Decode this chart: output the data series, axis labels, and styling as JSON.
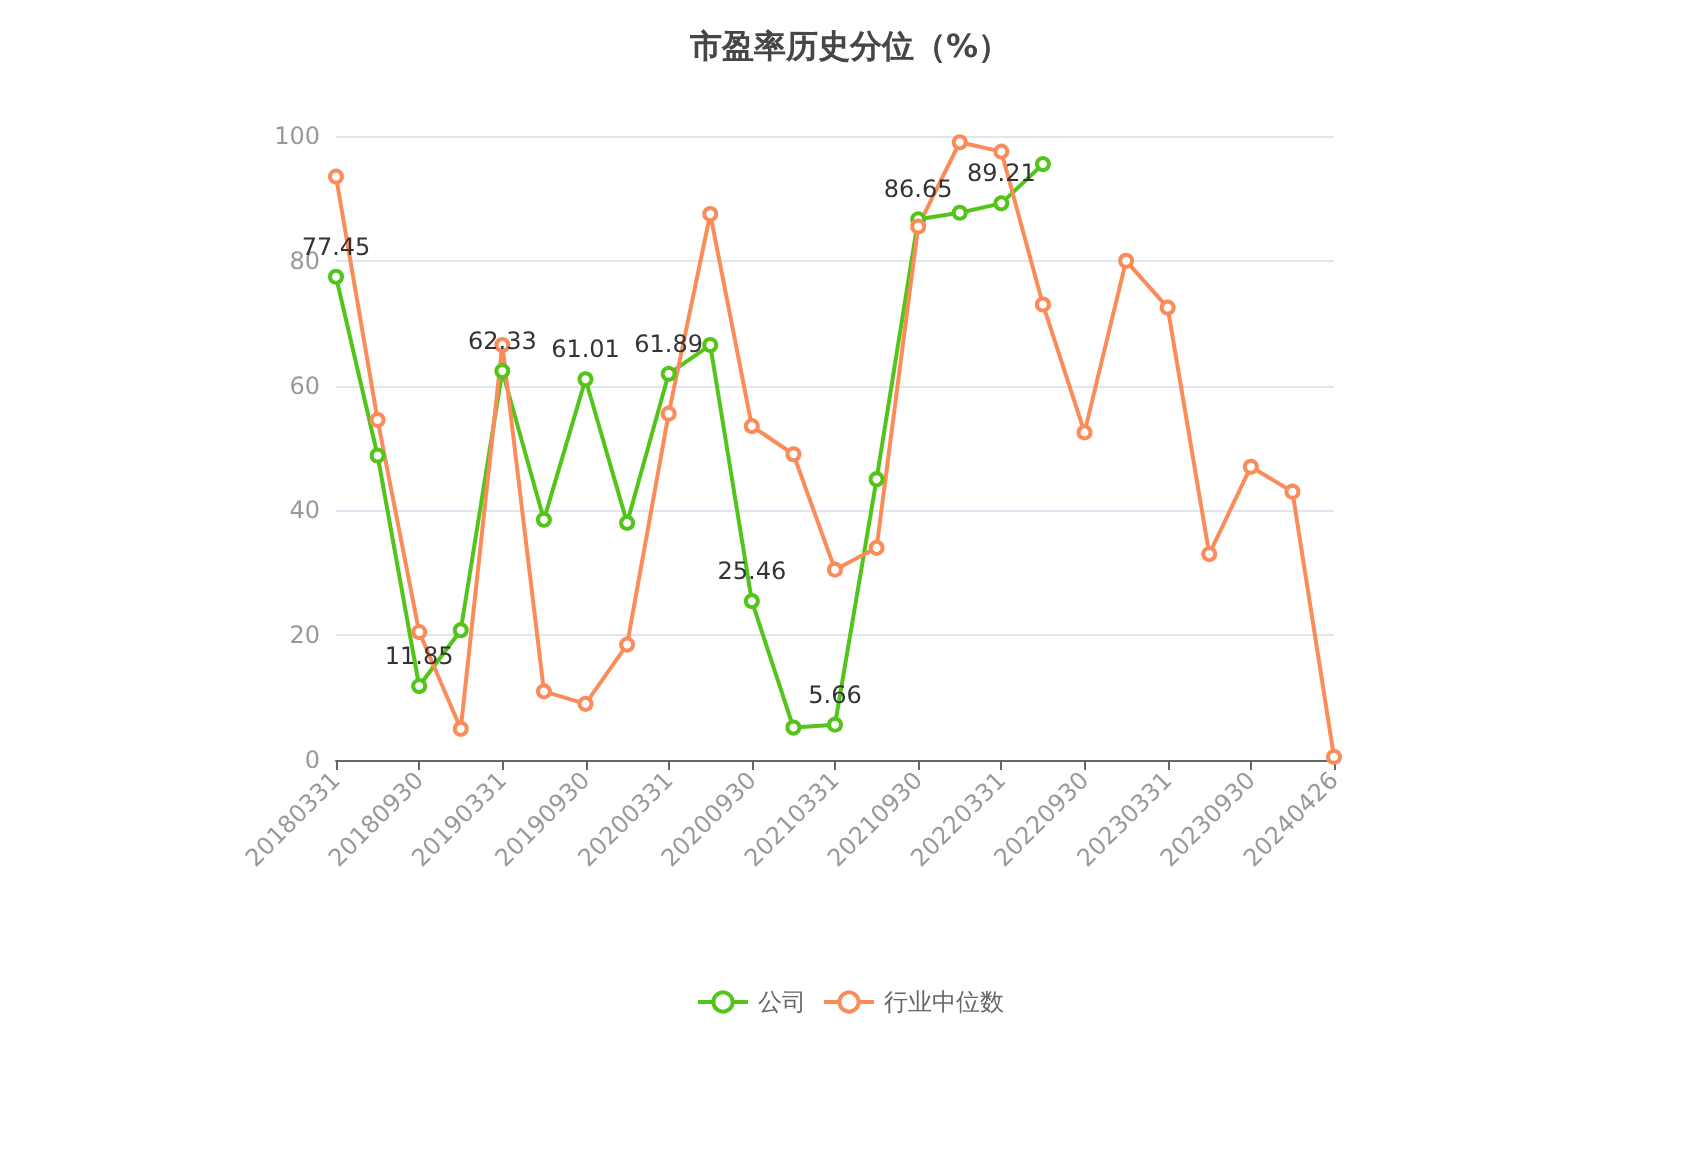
{
  "chart_data": {
    "type": "line",
    "title": "市盈率历史分位（%）",
    "categories": [
      "20180331",
      null,
      "20180930",
      null,
      "20190331",
      null,
      "20190930",
      null,
      "20200331",
      null,
      "20200930",
      null,
      "20210331",
      null,
      "20210930",
      null,
      "20220331",
      null,
      "20220930",
      null,
      "20230331",
      null,
      "20230930",
      null,
      "20240426"
    ],
    "series": [
      {
        "name": "公司",
        "color": "#52c41a",
        "values": [
          77.45,
          48.8,
          11.85,
          20.8,
          62.33,
          38.5,
          61.01,
          38,
          61.89,
          66.5,
          25.46,
          5.2,
          5.66,
          45,
          86.65,
          87.7,
          89.21,
          95.5,
          null,
          null,
          null,
          null,
          null,
          null,
          null
        ],
        "value_labels": [
          "77.45",
          null,
          "11.85",
          null,
          "62.33",
          null,
          "61.01",
          null,
          "61.89",
          null,
          "25.46",
          null,
          "5.66",
          null,
          "86.65",
          null,
          "89.21",
          null,
          null,
          null,
          null,
          null,
          null,
          null,
          null
        ]
      },
      {
        "name": "行业中位数",
        "color": "#fa8c5a",
        "values": [
          93.5,
          54.5,
          20.5,
          5,
          66.5,
          11,
          9,
          18.5,
          55.5,
          87.5,
          53.5,
          49,
          30.5,
          34,
          85.5,
          99,
          97.5,
          73,
          52.5,
          80,
          72.5,
          33,
          47,
          43,
          0.5
        ]
      }
    ],
    "ylim": [
      0,
      100
    ],
    "yticks": [
      0,
      20,
      40,
      60,
      80,
      100
    ],
    "grid": "y",
    "legend": "bottom",
    "marker": "circle",
    "line_style": "solid"
  }
}
